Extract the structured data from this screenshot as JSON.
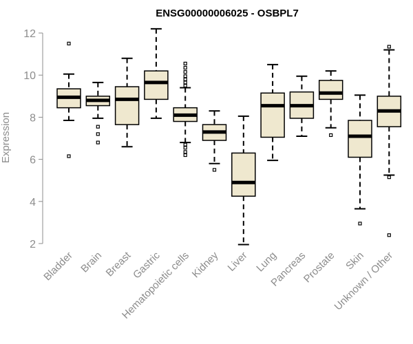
{
  "chart_data": {
    "type": "boxplot",
    "title": "ENSG00000006025 - OSBPL7",
    "xlabel": "",
    "ylabel": "Expression",
    "ylim": [
      2,
      12
    ],
    "yticks": [
      2,
      4,
      6,
      8,
      10,
      12
    ],
    "grid": false,
    "box_color": "#efe8cf",
    "categories": [
      "Bladder",
      "Brain",
      "Breast",
      "Gastric",
      "Hematopoietic cells",
      "Kidney",
      "Liver",
      "Lung",
      "Pancreas",
      "Prostate",
      "Skin",
      "Unknown / Other"
    ],
    "boxes": [
      {
        "q1": 8.45,
        "median": 8.95,
        "q3": 9.35,
        "wlo": 7.85,
        "whi": 10.05,
        "outliers": [
          11.5,
          6.15
        ]
      },
      {
        "q1": 8.55,
        "median": 8.8,
        "q3": 9.0,
        "wlo": 7.95,
        "whi": 9.65,
        "outliers": [
          7.55,
          7.2,
          6.8
        ]
      },
      {
        "q1": 7.65,
        "median": 8.85,
        "q3": 9.45,
        "wlo": 6.6,
        "whi": 10.8,
        "outliers": []
      },
      {
        "q1": 8.85,
        "median": 9.65,
        "q3": 10.2,
        "wlo": 7.95,
        "whi": 12.2,
        "outliers": []
      },
      {
        "q1": 7.8,
        "median": 8.1,
        "q3": 8.45,
        "wlo": 6.8,
        "whi": 9.4,
        "outliers": [
          10.55,
          10.35,
          10.15,
          9.95,
          9.8,
          9.65,
          9.5,
          6.7,
          6.55,
          6.35,
          6.2
        ]
      },
      {
        "q1": 6.9,
        "median": 7.3,
        "q3": 7.65,
        "wlo": 5.8,
        "whi": 8.3,
        "outliers": [
          5.5
        ]
      },
      {
        "q1": 4.25,
        "median": 4.9,
        "q3": 6.3,
        "wlo": 1.95,
        "whi": 8.05,
        "outliers": []
      },
      {
        "q1": 7.05,
        "median": 8.55,
        "q3": 9.15,
        "wlo": 5.95,
        "whi": 10.5,
        "outliers": []
      },
      {
        "q1": 7.95,
        "median": 8.55,
        "q3": 9.2,
        "wlo": 7.1,
        "whi": 9.95,
        "outliers": []
      },
      {
        "q1": 8.85,
        "median": 9.15,
        "q3": 9.75,
        "wlo": 7.5,
        "whi": 10.2,
        "outliers": [
          7.15
        ]
      },
      {
        "q1": 6.1,
        "median": 7.1,
        "q3": 7.85,
        "wlo": 3.65,
        "whi": 9.05,
        "outliers": [
          2.95
        ]
      },
      {
        "q1": 7.55,
        "median": 8.3,
        "q3": 9.0,
        "wlo": 5.25,
        "whi": 11.2,
        "outliers": [
          11.35,
          5.15,
          2.4
        ]
      }
    ]
  }
}
